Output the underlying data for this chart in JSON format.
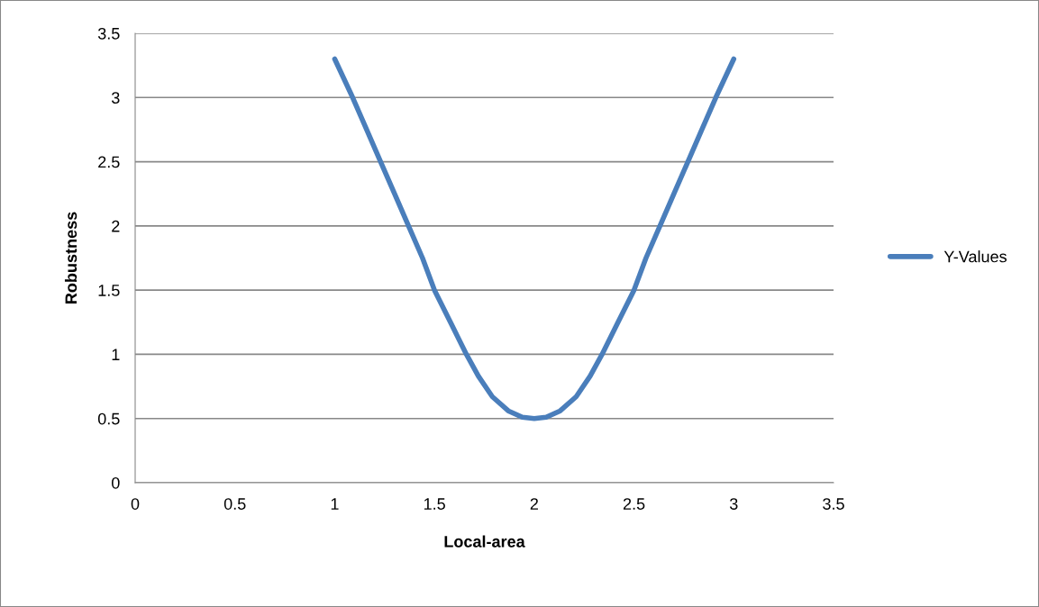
{
  "chart_data": {
    "type": "line",
    "xlabel": "Local-area",
    "ylabel": "Robustness",
    "series": [
      {
        "name": "Y-Values",
        "color": "#4a7ebb",
        "x": [
          1,
          1.09,
          1.16,
          1.23,
          1.3,
          1.37,
          1.44,
          1.5,
          1.58,
          1.66,
          1.72,
          1.79,
          1.87,
          1.94,
          2,
          2.06,
          2.13,
          2.21,
          2.28,
          2.34,
          2.42,
          2.5,
          2.56,
          2.63,
          2.7,
          2.77,
          2.84,
          2.91,
          3
        ],
        "values": [
          3.3,
          3.0,
          2.75,
          2.5,
          2.25,
          2.0,
          1.75,
          1.5,
          1.25,
          1.0,
          0.83,
          0.67,
          0.56,
          0.51,
          0.5,
          0.51,
          0.56,
          0.67,
          0.83,
          1.0,
          1.25,
          1.5,
          1.75,
          2.0,
          2.25,
          2.5,
          2.75,
          3.0,
          3.3
        ]
      }
    ],
    "xlim": [
      0,
      3.5
    ],
    "xticks": [
      0,
      0.5,
      1,
      1.5,
      2,
      2.5,
      3,
      3.5
    ],
    "ylim": [
      0,
      3.5
    ],
    "yticks": [
      0,
      0.5,
      1,
      1.5,
      2,
      2.5,
      3,
      3.5
    ],
    "grid": "y",
    "legend": "right",
    "marker": "none",
    "line_style": "solid"
  }
}
